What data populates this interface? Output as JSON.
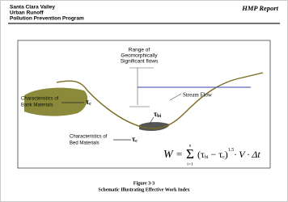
{
  "header": {
    "organization": [
      "Santa Clara Valley",
      "Urban Runoff",
      "Pollution Prevention Program"
    ],
    "report": "HMP Report"
  },
  "diagram": {
    "range_label": [
      "Range of",
      "Geomorphically",
      "Significant flows"
    ],
    "stream_flow": "Stream Flow",
    "bank_label": [
      "Characteristics of",
      "Bank Materials"
    ],
    "bank_shear": {
      "symbol": "τ",
      "subscript": "c"
    },
    "bed_shear_applied": {
      "symbol": "τ",
      "subscript": "bi"
    },
    "bed_label": [
      "Characteristics of",
      "Bed Materials"
    ],
    "bed_shear": {
      "symbol": "τ",
      "subscript": "c"
    },
    "equation": {
      "lhs": "W",
      "equals": "=",
      "sum": "Σ",
      "upper": "n",
      "lower": "i=1",
      "open": "(τ",
      "sub1": "bi",
      "minus": " − τ",
      "sub2": "c",
      "close": ")",
      "power": "1.5",
      "rest": "· V · Δt"
    }
  },
  "caption": {
    "figure": "Figure 3-3",
    "title": "Schematic Illustrating Effective Work Index"
  }
}
